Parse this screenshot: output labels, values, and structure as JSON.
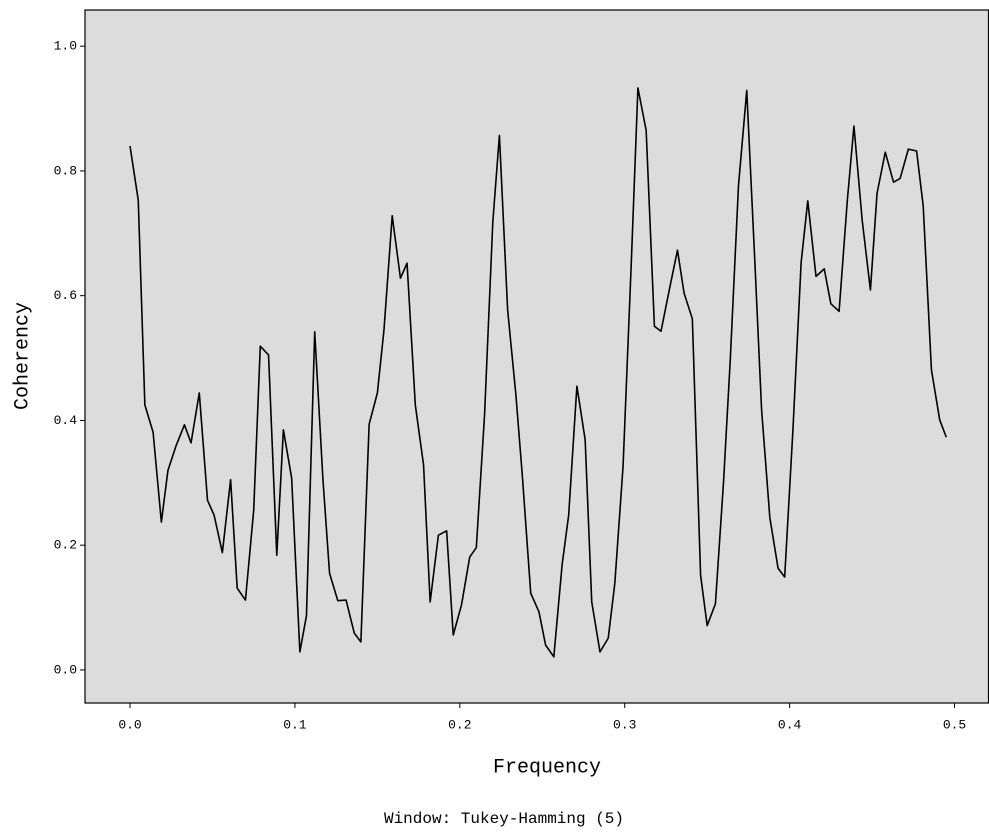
{
  "chart_data": {
    "type": "line",
    "x_label": "Frequency",
    "y_label": "Coherency",
    "footnote": "Window: Tukey-Hamming (5)",
    "x": [
      0,
      0.005,
      0.009,
      0.014,
      0.019,
      0.023,
      0.028,
      0.033,
      0.037,
      0.042,
      0.047,
      0.051,
      0.056,
      0.061,
      0.065,
      0.07,
      0.075,
      0.079,
      0.084,
      0.089,
      0.093,
      0.098,
      0.103,
      0.107,
      0.112,
      0.117,
      0.121,
      0.126,
      0.131,
      0.136,
      0.14,
      0.145,
      0.15,
      0.154,
      0.159,
      0.164,
      0.168,
      0.173,
      0.178,
      0.182,
      0.187,
      0.192,
      0.196,
      0.201,
      0.206,
      0.21,
      0.215,
      0.22,
      0.224,
      0.229,
      0.234,
      0.238,
      0.243,
      0.248,
      0.252,
      0.257,
      0.262,
      0.266,
      0.271,
      0.276,
      0.28,
      0.285,
      0.29,
      0.294,
      0.299,
      0.304,
      0.308,
      0.313,
      0.318,
      0.322,
      0.327,
      0.332,
      0.336,
      0.341,
      0.346,
      0.35,
      0.355,
      0.36,
      0.364,
      0.369,
      0.374,
      0.379,
      0.383,
      0.388,
      0.393,
      0.397,
      0.402,
      0.407,
      0.411,
      0.416,
      0.421,
      0.425,
      0.43,
      0.435,
      0.439,
      0.444,
      0.449,
      0.453,
      0.458,
      0.463,
      0.467,
      0.472,
      0.477,
      0.481,
      0.486,
      0.491,
      0.495
    ],
    "series": [
      {
        "name": "Coherency",
        "color": "#000000",
        "values": [
          0.84,
          0.753,
          0.425,
          0.381,
          0.237,
          0.32,
          0.36,
          0.393,
          0.364,
          0.444,
          0.272,
          0.248,
          0.188,
          0.305,
          0.131,
          0.112,
          0.256,
          0.519,
          0.505,
          0.184,
          0.385,
          0.308,
          0.029,
          0.087,
          0.542,
          0.305,
          0.155,
          0.111,
          0.112,
          0.059,
          0.045,
          0.394,
          0.444,
          0.545,
          0.728,
          0.628,
          0.652,
          0.425,
          0.329,
          0.109,
          0.216,
          0.223,
          0.056,
          0.104,
          0.181,
          0.196,
          0.409,
          0.718,
          0.857,
          0.577,
          0.441,
          0.308,
          0.123,
          0.093,
          0.04,
          0.021,
          0.168,
          0.248,
          0.455,
          0.369,
          0.109,
          0.029,
          0.051,
          0.139,
          0.327,
          0.654,
          0.933,
          0.865,
          0.551,
          0.543,
          0.609,
          0.673,
          0.604,
          0.563,
          0.152,
          0.071,
          0.106,
          0.305,
          0.497,
          0.777,
          0.929,
          0.649,
          0.417,
          0.244,
          0.163,
          0.149,
          0.385,
          0.654,
          0.752,
          0.631,
          0.643,
          0.587,
          0.575,
          0.753,
          0.872,
          0.721,
          0.609,
          0.764,
          0.83,
          0.782,
          0.788,
          0.835,
          0.832,
          0.744,
          0.481,
          0.401,
          0.373
        ]
      }
    ],
    "xlim": [
      -0.0273,
      0.5206
    ],
    "xticks": [
      {
        "value": 0,
        "label": "0.0"
      },
      0.1,
      0.2,
      0.3,
      0.4,
      0.5
    ],
    "ylim": [
      -0.053,
      1.058
    ],
    "yticks": [
      {
        "value": 0,
        "label": "0.0"
      },
      0.2,
      0.4,
      0.6,
      0.8,
      {
        "value": 1,
        "label": "1.0"
      }
    ],
    "background": "#dcdcdc"
  }
}
